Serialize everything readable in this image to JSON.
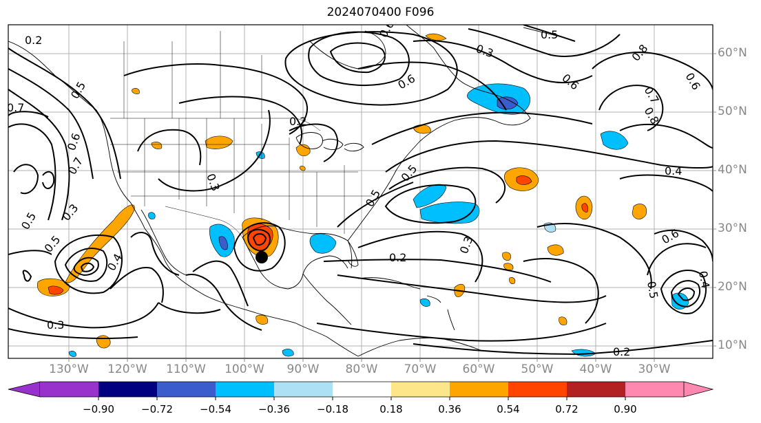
{
  "title": "2024070400 F096",
  "map": {
    "lon_labels": [
      "130°W",
      "120°W",
      "110°W",
      "100°W",
      "90°W",
      "80°W",
      "70°W",
      "60°W",
      "50°W",
      "40°W",
      "30°W"
    ],
    "lat_labels": [
      "60°N",
      "50°N",
      "40°N",
      "30°N",
      "20°N",
      "10°N"
    ],
    "contour_labels": [
      "0.2",
      "0.7",
      "0.6",
      "0.5",
      "0.3",
      "0.2",
      "0.6",
      "0.5",
      "0.8",
      "0.7",
      "0.6",
      "0.8",
      "0.6",
      "0.4",
      "0.3",
      "0.5",
      "0.5",
      "0.3",
      "0.2",
      "0.6",
      "0.5",
      "0.3",
      "0.2",
      "0.4",
      "0.3",
      "1.0",
      "0.8",
      "0.7",
      "0.6",
      "0.5",
      "0.4",
      "0.5"
    ],
    "storm_marker": "filled-circle",
    "colors": {
      "land_outline": "#000000",
      "grid": "#b0b0b0",
      "contour": "#000000"
    }
  },
  "colorbar": {
    "ticks": [
      "−0.90",
      "−0.72",
      "−0.54",
      "−0.36",
      "−0.18",
      "0.18",
      "0.36",
      "0.54",
      "0.72",
      "0.90"
    ],
    "colors": [
      "#9932cc",
      "#000080",
      "#3a5ccc",
      "#00bfff",
      "#aee0f5",
      "#ffffff",
      "#fde68a",
      "#ffa500",
      "#ff4500",
      "#b22222",
      "#ff88b0"
    ]
  }
}
